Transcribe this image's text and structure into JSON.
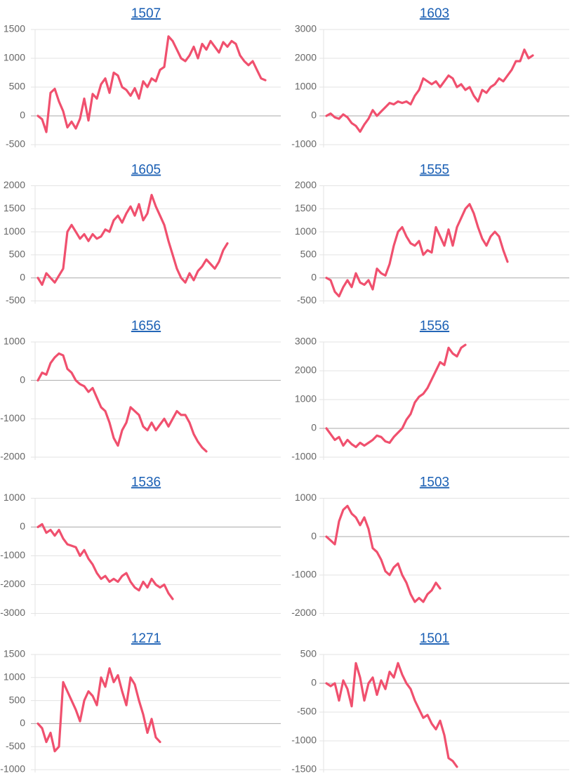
{
  "chart_data": [
    {
      "type": "line",
      "title": "1507",
      "color": "#f0506e",
      "grid": true,
      "ylim": [
        -500,
        1500
      ],
      "yticks": [
        -500,
        0,
        500,
        1000,
        1500
      ],
      "values": [
        0,
        -60,
        -280,
        400,
        470,
        250,
        80,
        -200,
        -100,
        -220,
        -50,
        300,
        -80,
        380,
        300,
        550,
        650,
        400,
        750,
        700,
        500,
        450,
        350,
        480,
        300,
        600,
        500,
        650,
        600,
        800,
        850,
        1380,
        1300,
        1150,
        1000,
        950,
        1050,
        1200,
        1000,
        1250,
        1150,
        1300,
        1200,
        1100,
        1280,
        1200,
        1300,
        1250,
        1050,
        950,
        880,
        950,
        800,
        650,
        620
      ]
    },
    {
      "type": "line",
      "title": "1603",
      "color": "#f0506e",
      "grid": true,
      "ylim": [
        -1000,
        3000
      ],
      "yticks": [
        -1000,
        0,
        1000,
        2000,
        3000
      ],
      "values": [
        0,
        80,
        -50,
        -100,
        50,
        -50,
        -250,
        -350,
        -550,
        -300,
        -100,
        200,
        0,
        150,
        300,
        450,
        400,
        500,
        450,
        500,
        400,
        700,
        900,
        1300,
        1200,
        1100,
        1200,
        1000,
        1200,
        1400,
        1300,
        1000,
        1100,
        900,
        1000,
        700,
        500,
        900,
        800,
        1000,
        1100,
        1300,
        1200,
        1400,
        1600,
        1900,
        1900,
        2300,
        2000,
        2100
      ]
    },
    {
      "type": "line",
      "title": "1605",
      "color": "#f0506e",
      "grid": true,
      "ylim": [
        -500,
        2000
      ],
      "yticks": [
        -500,
        0,
        500,
        1000,
        1500,
        2000
      ],
      "values": [
        0,
        -150,
        100,
        0,
        -100,
        50,
        200,
        1000,
        1150,
        1000,
        850,
        950,
        800,
        950,
        850,
        900,
        1050,
        1000,
        1250,
        1350,
        1200,
        1400,
        1550,
        1350,
        1600,
        1250,
        1400,
        1800,
        1550,
        1350,
        1150,
        800,
        500,
        200,
        0,
        -100,
        100,
        -50,
        150,
        250,
        400,
        300,
        200,
        350,
        600,
        750
      ]
    },
    {
      "type": "line",
      "title": "1555",
      "color": "#f0506e",
      "grid": true,
      "ylim": [
        -500,
        2000
      ],
      "yticks": [
        -500,
        0,
        500,
        1000,
        1500,
        2000
      ],
      "values": [
        0,
        -50,
        -300,
        -400,
        -200,
        -50,
        -200,
        100,
        -100,
        -150,
        -50,
        -250,
        200,
        100,
        50,
        300,
        700,
        1000,
        1100,
        900,
        750,
        700,
        800,
        500,
        600,
        550,
        1100,
        900,
        700,
        1050,
        700,
        1100,
        1300,
        1500,
        1600,
        1400,
        1100,
        850,
        700,
        900,
        1000,
        900,
        600,
        350
      ]
    },
    {
      "type": "line",
      "title": "1656",
      "color": "#f0506e",
      "grid": true,
      "ylim": [
        -2000,
        1000
      ],
      "yticks": [
        -2000,
        -1000,
        0,
        1000
      ],
      "values": [
        0,
        200,
        150,
        450,
        600,
        700,
        650,
        300,
        200,
        0,
        -100,
        -150,
        -300,
        -200,
        -450,
        -700,
        -800,
        -1100,
        -1500,
        -1700,
        -1300,
        -1100,
        -700,
        -800,
        -900,
        -1200,
        -1300,
        -1100,
        -1300,
        -1150,
        -1000,
        -1200,
        -1000,
        -800,
        -900,
        -900,
        -1100,
        -1400,
        -1600,
        -1750,
        -1850
      ]
    },
    {
      "type": "line",
      "title": "1556",
      "color": "#f0506e",
      "grid": true,
      "ylim": [
        -1000,
        3000
      ],
      "yticks": [
        -1000,
        0,
        1000,
        2000,
        3000
      ],
      "values": [
        0,
        -200,
        -400,
        -300,
        -600,
        -400,
        -550,
        -650,
        -500,
        -600,
        -500,
        -400,
        -250,
        -300,
        -450,
        -500,
        -300,
        -150,
        0,
        300,
        500,
        900,
        1100,
        1200,
        1400,
        1700,
        2000,
        2300,
        2200,
        2800,
        2600,
        2500,
        2800,
        2900
      ]
    },
    {
      "type": "line",
      "title": "1536",
      "color": "#f0506e",
      "grid": true,
      "ylim": [
        -3000,
        1000
      ],
      "yticks": [
        -3000,
        -2000,
        -1000,
        0,
        1000
      ],
      "values": [
        0,
        100,
        -200,
        -100,
        -300,
        -100,
        -400,
        -600,
        -650,
        -700,
        -1000,
        -800,
        -1100,
        -1300,
        -1600,
        -1800,
        -1700,
        -1900,
        -1800,
        -1900,
        -1700,
        -1600,
        -1900,
        -2100,
        -2200,
        -1900,
        -2100,
        -1800,
        -2000,
        -2100,
        -2000,
        -2300,
        -2500
      ]
    },
    {
      "type": "line",
      "title": "1503",
      "color": "#f0506e",
      "grid": true,
      "ylim": [
        -2000,
        1000
      ],
      "yticks": [
        -2000,
        -1000,
        0,
        1000
      ],
      "values": [
        0,
        -100,
        -200,
        400,
        700,
        800,
        600,
        500,
        300,
        500,
        200,
        -300,
        -400,
        -600,
        -900,
        -1000,
        -800,
        -700,
        -1000,
        -1200,
        -1500,
        -1700,
        -1600,
        -1700,
        -1500,
        -1400,
        -1200,
        -1350
      ]
    },
    {
      "type": "line",
      "title": "1271",
      "color": "#f0506e",
      "grid": true,
      "ylim": [
        -1000,
        1500
      ],
      "yticks": [
        -1000,
        -500,
        0,
        500,
        1000,
        1500
      ],
      "values": [
        0,
        -100,
        -400,
        -200,
        -600,
        -500,
        900,
        700,
        500,
        300,
        50,
        500,
        700,
        600,
        400,
        1000,
        800,
        1200,
        900,
        1050,
        700,
        400,
        1000,
        850,
        500,
        200,
        -200,
        100,
        -300,
        -400
      ]
    },
    {
      "type": "line",
      "title": "1501",
      "color": "#f0506e",
      "grid": true,
      "ylim": [
        -1500,
        500
      ],
      "yticks": [
        -1500,
        -1000,
        -500,
        0,
        500
      ],
      "values": [
        0,
        -50,
        0,
        -300,
        50,
        -100,
        -400,
        350,
        100,
        -300,
        0,
        100,
        -200,
        50,
        -100,
        200,
        100,
        350,
        150,
        0,
        -100,
        -300,
        -450,
        -600,
        -550,
        -700,
        -800,
        -650,
        -900,
        -1300,
        -1350,
        -1450
      ]
    }
  ]
}
